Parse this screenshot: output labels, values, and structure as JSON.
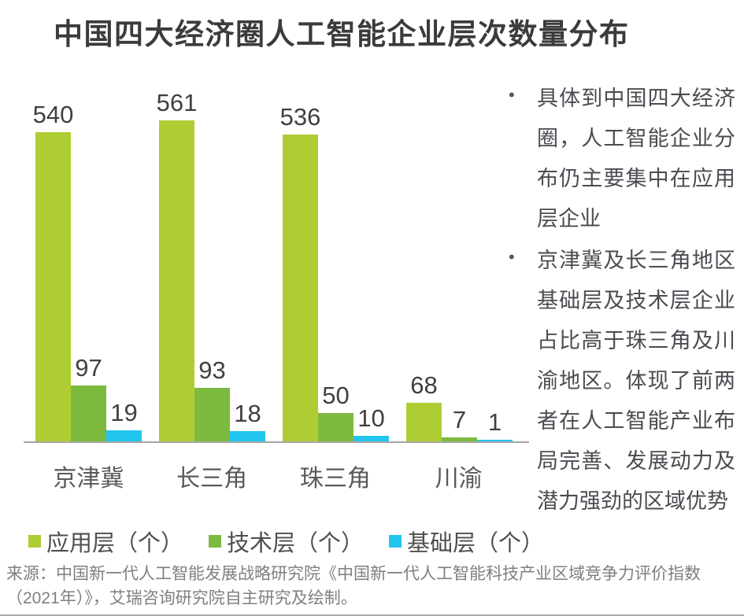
{
  "title": "中国四大经济圈人工智能企业层次数量分布",
  "chart_data": {
    "type": "bar",
    "categories": [
      "京津冀",
      "长三角",
      "珠三角",
      "川渝"
    ],
    "series": [
      {
        "name": "应用层（个）",
        "color": "#aecd33",
        "values": [
          540,
          561,
          536,
          68
        ]
      },
      {
        "name": "技术层（个）",
        "color": "#7cba3f",
        "values": [
          97,
          93,
          50,
          7
        ]
      },
      {
        "name": "基础层（个）",
        "color": "#22c5ee",
        "values": [
          19,
          18,
          10,
          1
        ]
      }
    ],
    "title": "中国四大经济圈人工智能企业层次数量分布",
    "xlabel": "",
    "ylabel": "",
    "ylim": [
      0,
      600
    ],
    "grid": false,
    "value_labels": true,
    "legend_position": "bottom",
    "axis_line_color": "#a6a6a6"
  },
  "insights": {
    "bullet_marker": "•",
    "bullets": [
      "具体到中国四大经济圈，人工智能企业分布仍主要集中在应用层企业",
      "京津冀及长三角地区基础层及技术层企业占比高于珠三角及川渝地区。体现了前两者在人工智能产业布局完善、发展动力及潜力强劲的区域优势"
    ]
  },
  "source_note": "来源：中国新一代人工智能发展战略研究院《中国新一代人工智能科技产业区域竞争力评价指数（2021年）》，艾瑞咨询研究院自主研究及绘制。",
  "colors": {
    "title_text": "#3d3b3a",
    "value_label": "#404040",
    "category_label": "#595959",
    "legend_text": "#4f4f4f",
    "bullet_text": "#4b4c52",
    "source_text": "#7f7f7f",
    "baseline": "#a6a6a6"
  }
}
